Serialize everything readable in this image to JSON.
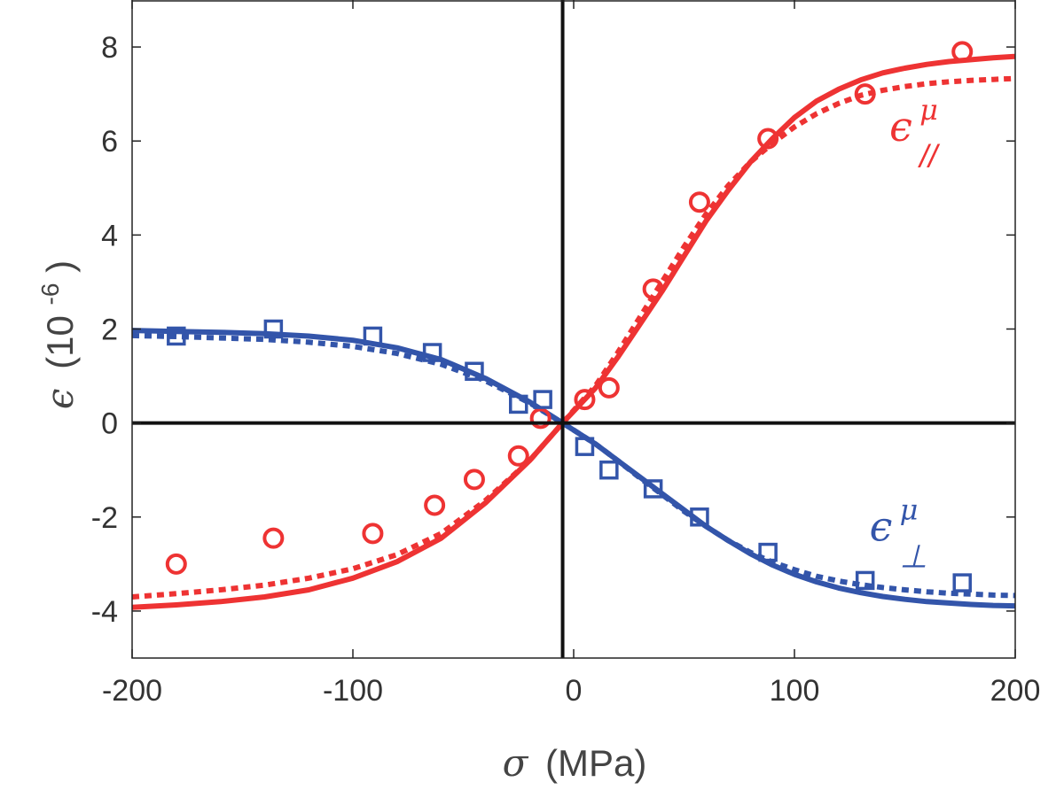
{
  "chart_data": {
    "type": "scatter",
    "title": "",
    "xlabel": {
      "symbol": "σ",
      "unit": "(MPa)"
    },
    "ylabel": {
      "symbol": "ϵ",
      "unit": "(10",
      "exponent": "-6",
      "close": ")"
    },
    "xlim": [
      -200,
      200
    ],
    "ylim": [
      -5,
      9
    ],
    "xticks": [
      -200,
      -100,
      0,
      100,
      200
    ],
    "yticks": [
      -4,
      -2,
      0,
      2,
      4,
      6,
      8
    ],
    "grid": false,
    "reference_lines": {
      "vertical_x": -5,
      "horizontal_y": 0
    },
    "colors": {
      "parallel": "#ee3333",
      "perpendicular": "#3355aa",
      "reference": "#111111",
      "axes": "#222222"
    },
    "series": [
      {
        "name": "parallel measured",
        "marker": "circle",
        "color": "#ee3333",
        "x": [
          -180,
          -136,
          -91,
          -63,
          -45,
          -25,
          -15,
          5,
          16,
          36,
          57,
          88,
          132,
          176
        ],
        "y": [
          -3.0,
          -2.45,
          -2.35,
          -1.75,
          -1.2,
          -0.7,
          0.1,
          0.5,
          0.75,
          2.85,
          4.7,
          6.05,
          7.0,
          7.9
        ]
      },
      {
        "name": "parallel model (solid)",
        "style": "solid",
        "color": "#ee3333",
        "x": [
          -200,
          -180,
          -160,
          -140,
          -120,
          -100,
          -80,
          -60,
          -40,
          -20,
          -5,
          10,
          20,
          30,
          40,
          50,
          60,
          70,
          80,
          90,
          100,
          110,
          120,
          130,
          140,
          150,
          160,
          170,
          180,
          190,
          200
        ],
        "y": [
          -3.92,
          -3.87,
          -3.8,
          -3.7,
          -3.55,
          -3.3,
          -2.95,
          -2.45,
          -1.7,
          -0.8,
          0.0,
          0.75,
          1.4,
          2.1,
          2.8,
          3.55,
          4.3,
          4.95,
          5.55,
          6.05,
          6.5,
          6.85,
          7.1,
          7.3,
          7.45,
          7.55,
          7.63,
          7.69,
          7.73,
          7.77,
          7.8
        ]
      },
      {
        "name": "parallel model (dotted)",
        "style": "dotted",
        "color": "#ee3333",
        "x": [
          -200,
          -180,
          -160,
          -140,
          -120,
          -100,
          -80,
          -60,
          -40,
          -20,
          -5,
          10,
          20,
          30,
          40,
          50,
          60,
          70,
          80,
          90,
          100,
          110,
          120,
          130,
          140,
          150,
          160,
          170,
          180,
          190,
          200
        ],
        "y": [
          -3.7,
          -3.63,
          -3.55,
          -3.45,
          -3.3,
          -3.1,
          -2.8,
          -2.35,
          -1.65,
          -0.8,
          0.0,
          0.8,
          1.5,
          2.25,
          3.0,
          3.75,
          4.45,
          5.05,
          5.55,
          5.95,
          6.3,
          6.58,
          6.8,
          6.97,
          7.08,
          7.16,
          7.22,
          7.26,
          7.29,
          7.31,
          7.33
        ]
      },
      {
        "name": "perpendicular measured",
        "marker": "square",
        "color": "#3355aa",
        "x": [
          -180,
          -136,
          -91,
          -64,
          -45,
          -25,
          -14,
          5,
          16,
          36,
          57,
          88,
          132,
          176
        ],
        "y": [
          1.85,
          2.0,
          1.85,
          1.5,
          1.1,
          0.4,
          0.5,
          -0.5,
          -1.0,
          -1.4,
          -2.0,
          -2.75,
          -3.35,
          -3.4
        ]
      },
      {
        "name": "perpendicular model (solid)",
        "style": "solid",
        "color": "#3355aa",
        "x": [
          -200,
          -180,
          -160,
          -140,
          -120,
          -100,
          -80,
          -60,
          -40,
          -20,
          -5,
          10,
          20,
          30,
          40,
          50,
          60,
          70,
          80,
          90,
          100,
          110,
          120,
          130,
          140,
          150,
          160,
          170,
          180,
          190,
          200
        ],
        "y": [
          1.97,
          1.95,
          1.93,
          1.9,
          1.85,
          1.76,
          1.6,
          1.35,
          0.95,
          0.45,
          0.0,
          -0.45,
          -0.8,
          -1.15,
          -1.5,
          -1.85,
          -2.2,
          -2.5,
          -2.78,
          -3.02,
          -3.22,
          -3.38,
          -3.51,
          -3.61,
          -3.69,
          -3.75,
          -3.8,
          -3.83,
          -3.86,
          -3.88,
          -3.89
        ]
      },
      {
        "name": "perpendicular model (dotted)",
        "style": "dotted",
        "color": "#3355aa",
        "x": [
          -200,
          -180,
          -160,
          -140,
          -120,
          -100,
          -80,
          -60,
          -40,
          -20,
          -5,
          10,
          20,
          30,
          40,
          50,
          60,
          70,
          80,
          90,
          100,
          110,
          120,
          130,
          140,
          150,
          160,
          170,
          180,
          190,
          200
        ],
        "y": [
          1.86,
          1.84,
          1.81,
          1.78,
          1.72,
          1.63,
          1.48,
          1.25,
          0.9,
          0.43,
          0.0,
          -0.45,
          -0.8,
          -1.17,
          -1.52,
          -1.88,
          -2.2,
          -2.5,
          -2.75,
          -2.96,
          -3.12,
          -3.26,
          -3.36,
          -3.44,
          -3.5,
          -3.55,
          -3.59,
          -3.62,
          -3.64,
          -3.66,
          -3.67
        ]
      }
    ],
    "annotations": [
      {
        "name": "epsilon-parallel",
        "text": "ϵ",
        "superscript": "μ",
        "subscript": "//",
        "color": "#ee3333",
        "at": [
          143,
          6.0
        ]
      },
      {
        "name": "epsilon-perpendicular",
        "text": "ϵ",
        "superscript": "μ",
        "subscript": "⊥",
        "color": "#3355aa",
        "at": [
          134,
          -2.5
        ]
      }
    ]
  }
}
